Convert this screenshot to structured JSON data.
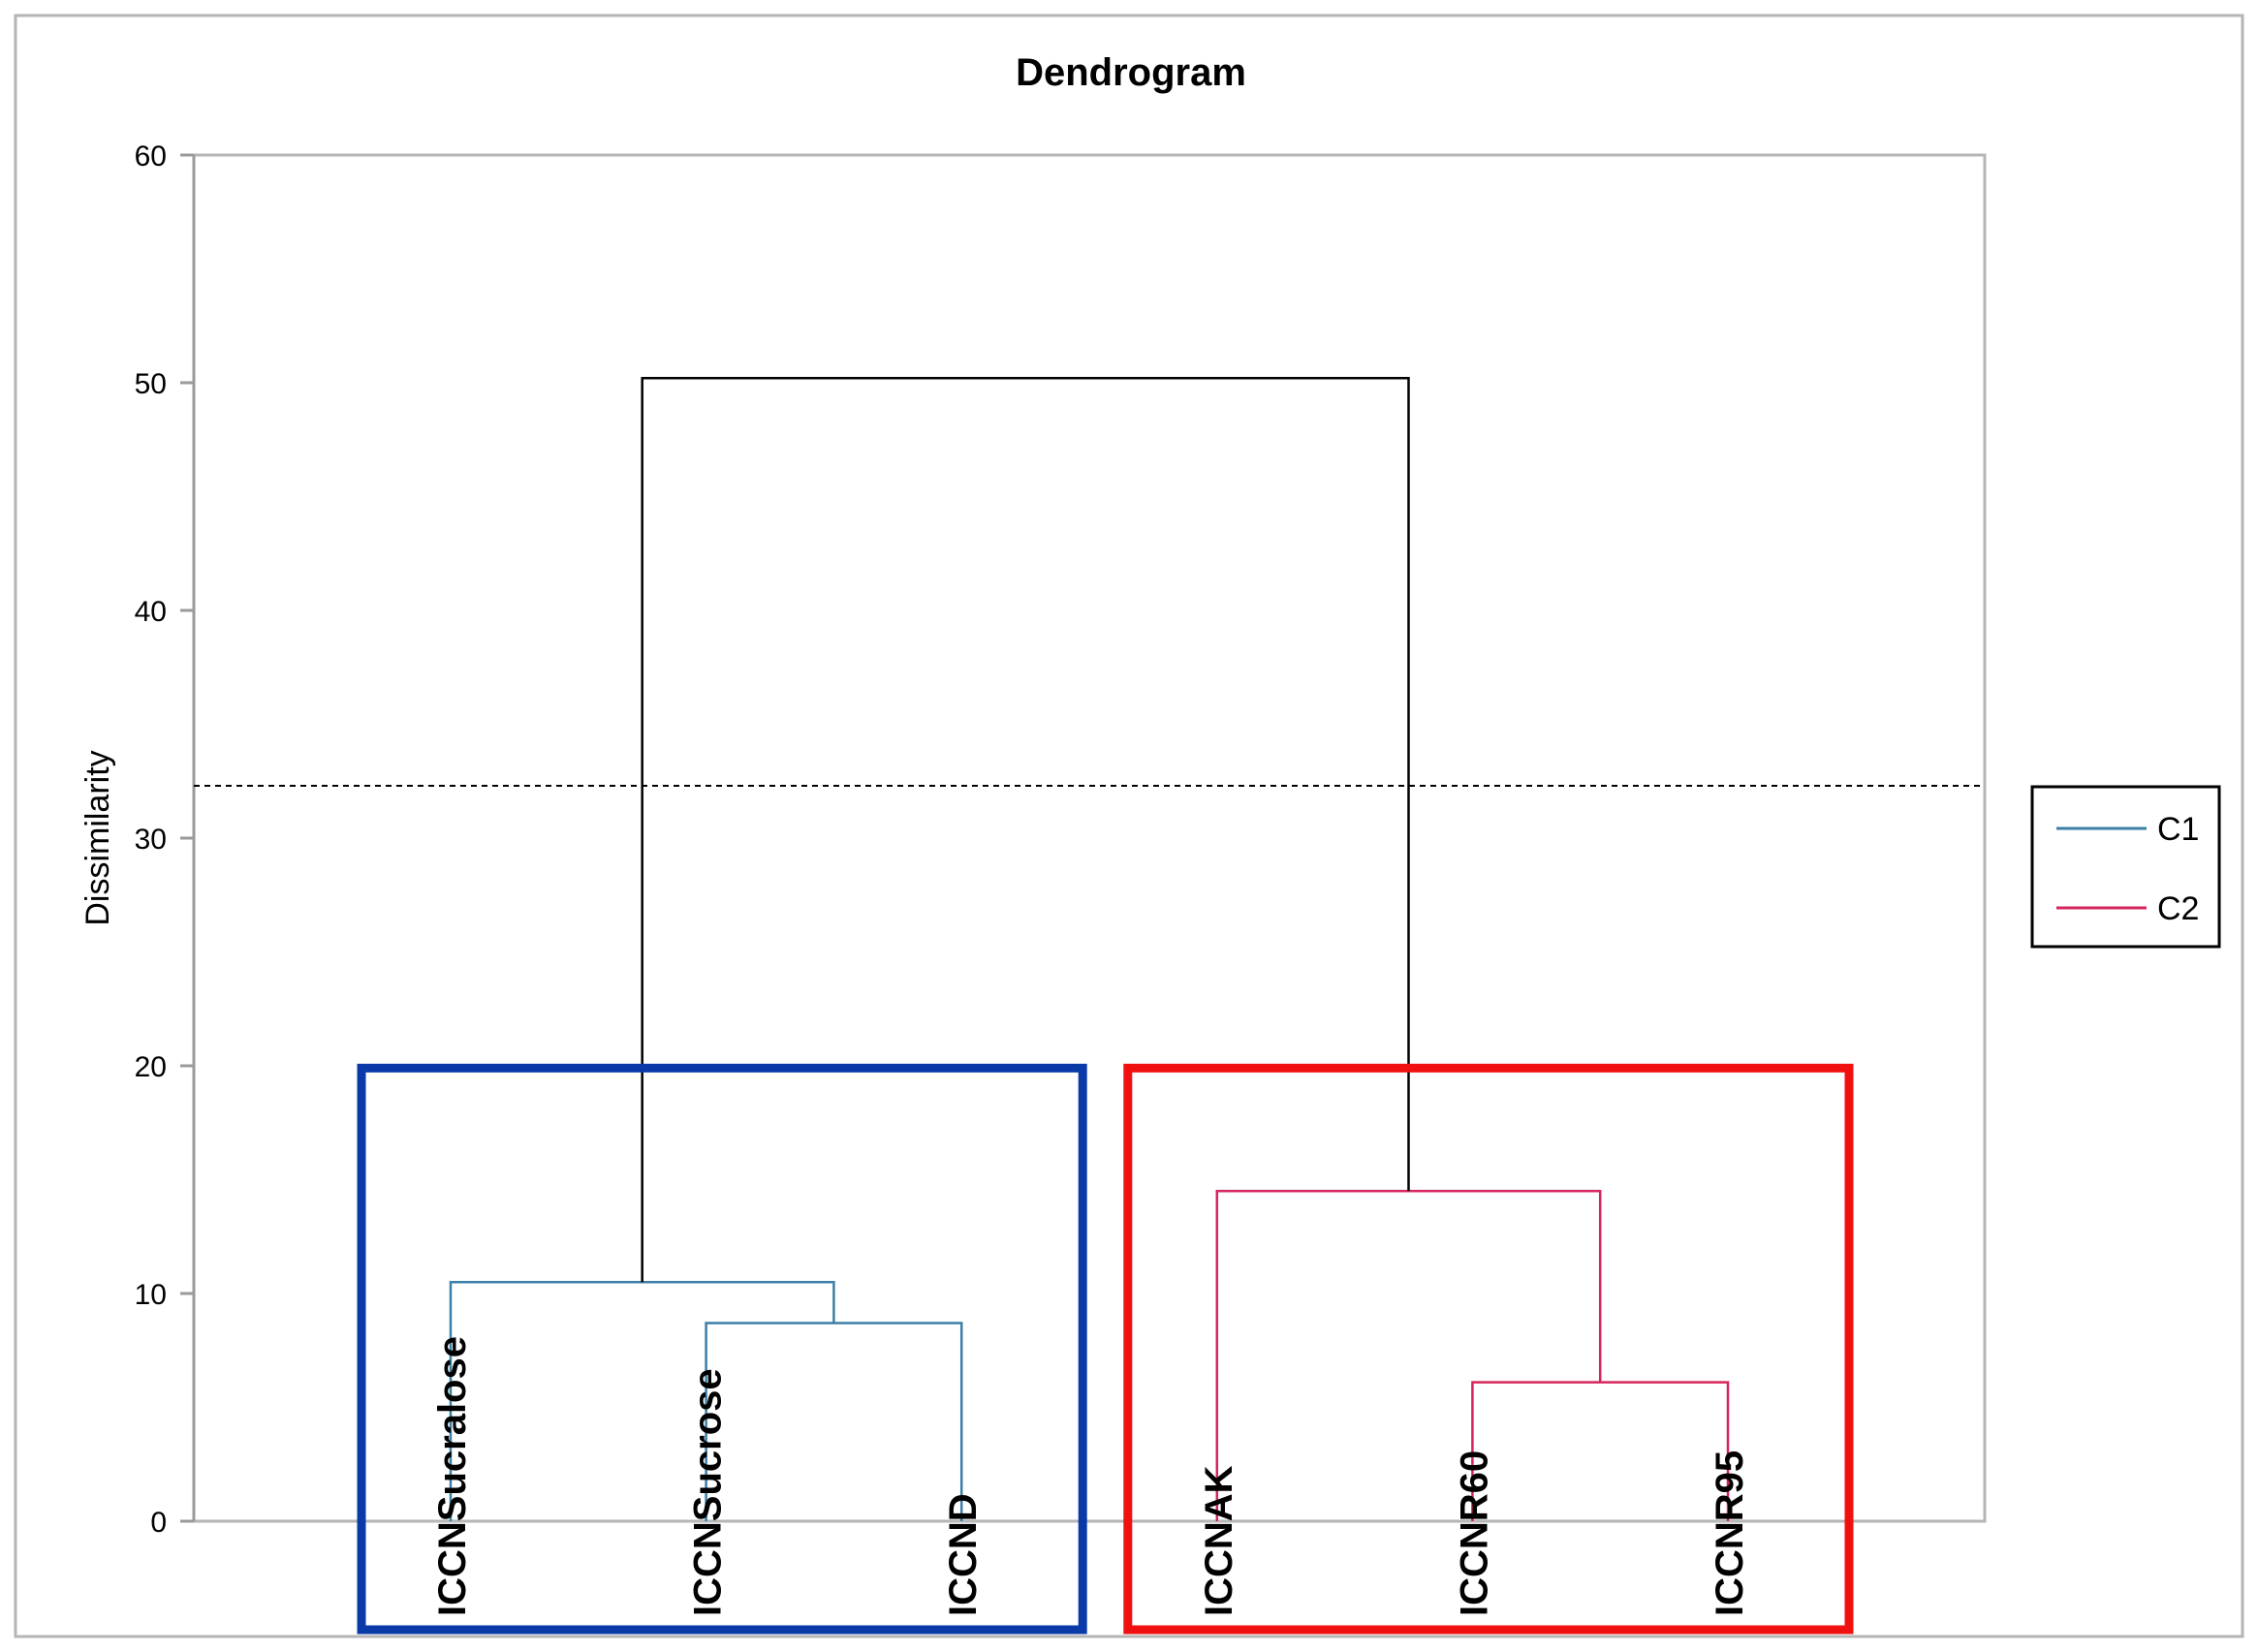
{
  "chart_data": {
    "type": "dendrogram",
    "title": "Dendrogram",
    "xlabel": "",
    "ylabel": "Dissimilarity",
    "ylim": [
      0,
      60
    ],
    "yticks": [
      0,
      10,
      20,
      30,
      40,
      50,
      60
    ],
    "grid": false,
    "legend_position": "right",
    "truncation_level": 32.3,
    "leaves": [
      "ICCNSucralose",
      "ICCNSucrose",
      "ICCND",
      "ICCNAK",
      "ICCNR60",
      "ICCNR95"
    ],
    "merges": [
      {
        "left": "ICCNR60",
        "right": "ICCNR95",
        "height": 6.1,
        "cluster": "C2"
      },
      {
        "left": "ICCNSucrose",
        "right": "ICCND",
        "height": 8.7,
        "cluster": "C1"
      },
      {
        "left": "ICCNSucralose",
        "right": "ICCNSucrose+ICCND",
        "height": 10.5,
        "cluster": "C1"
      },
      {
        "left": "ICCNAK",
        "right": "ICCNR60+ICCNR95",
        "height": 14.5,
        "cluster": "C2"
      },
      {
        "left": "C1",
        "right": "C2",
        "height": 50.2,
        "cluster": ""
      }
    ],
    "series": [
      {
        "name": "C1",
        "color": "#3b7fa6",
        "members": [
          "ICCNSucralose",
          "ICCNSucrose",
          "ICCND"
        ]
      },
      {
        "name": "C2",
        "color": "#d6245c",
        "members": [
          "ICCNAK",
          "ICCNR60",
          "ICCNR95"
        ]
      }
    ],
    "root_color": "#000000",
    "highlight_boxes": [
      {
        "color": "#0a3aa8",
        "members": [
          "ICCNSucralose",
          "ICCNSucrose",
          "ICCND"
        ]
      },
      {
        "color": "#f01010",
        "members": [
          "ICCNAK",
          "ICCNR60",
          "ICCNR95"
        ]
      }
    ]
  }
}
